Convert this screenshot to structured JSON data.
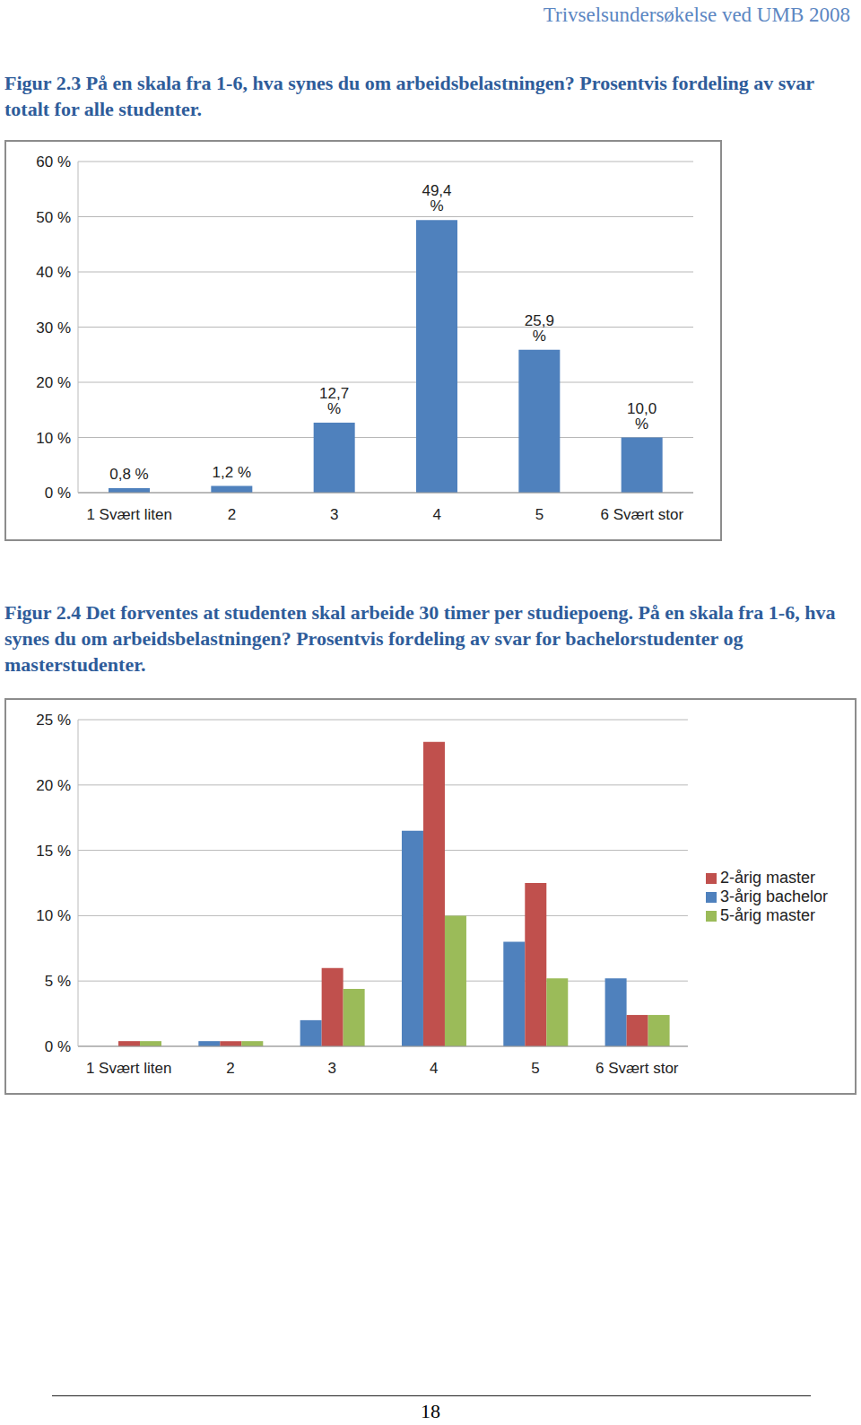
{
  "header": "Trivselsundersøkelse ved UMB 2008",
  "page_number": "18",
  "chart_data": [
    {
      "type": "bar",
      "title": "Figur 2.3 På en skala fra 1-6, hva synes du om arbeidsbelastningen? Prosentvis fordeling av svar totalt for alle studenter.",
      "categories": [
        "1 Svært liten",
        "2",
        "3",
        "4",
        "5",
        "6 Svært stor"
      ],
      "values": [
        0.8,
        1.2,
        12.7,
        49.4,
        25.9,
        10.0
      ],
      "value_labels": [
        "0,8 %",
        "1,2 %",
        "12,7 %",
        "49,4 %",
        "25,9 %",
        "10,0 %"
      ],
      "color": "#4f81bd",
      "data_labels": true,
      "ylim": [
        0,
        60
      ],
      "yticks": [
        {
          "value": 0,
          "label": "0 %"
        },
        {
          "value": 10,
          "label": "10 %"
        },
        {
          "value": 20,
          "label": "20 %"
        },
        {
          "value": 30,
          "label": "30 %"
        },
        {
          "value": 40,
          "label": "40 %"
        },
        {
          "value": 50,
          "label": "50 %"
        },
        {
          "value": 60,
          "label": "60 %"
        }
      ],
      "grid": true
    },
    {
      "type": "bar",
      "title": "Figur 2.4 Det forventes at studenten skal arbeide 30 timer per studiepoeng. På en skala fra 1-6, hva synes du om arbeidsbelastningen? Prosentvis fordeling av svar for bachelorstudenter og masterstudenter.",
      "categories": [
        "1 Svært liten",
        "2",
        "3",
        "4",
        "5",
        "6 Svært stor"
      ],
      "series": [
        {
          "name": "3-årig bachelor",
          "color": "#4f81bd",
          "values": [
            0,
            0.4,
            2.0,
            16.5,
            8.0,
            5.2
          ]
        },
        {
          "name": "2-årig master",
          "color": "#c0504d",
          "values": [
            0.4,
            0.4,
            6.0,
            23.3,
            12.5,
            2.4
          ]
        },
        {
          "name": "5-årig master",
          "color": "#9bbb59",
          "values": [
            0.4,
            0.4,
            4.4,
            10.0,
            5.2,
            2.4
          ]
        }
      ],
      "ylim": [
        0,
        25
      ],
      "yticks": [
        {
          "value": 0,
          "label": "0 %"
        },
        {
          "value": 5,
          "label": "5 %"
        },
        {
          "value": 10,
          "label": "10 %"
        },
        {
          "value": 15,
          "label": "15 %"
        },
        {
          "value": 20,
          "label": "20 %"
        },
        {
          "value": 25,
          "label": "25 %"
        }
      ],
      "grid": true,
      "legend": "right"
    }
  ]
}
